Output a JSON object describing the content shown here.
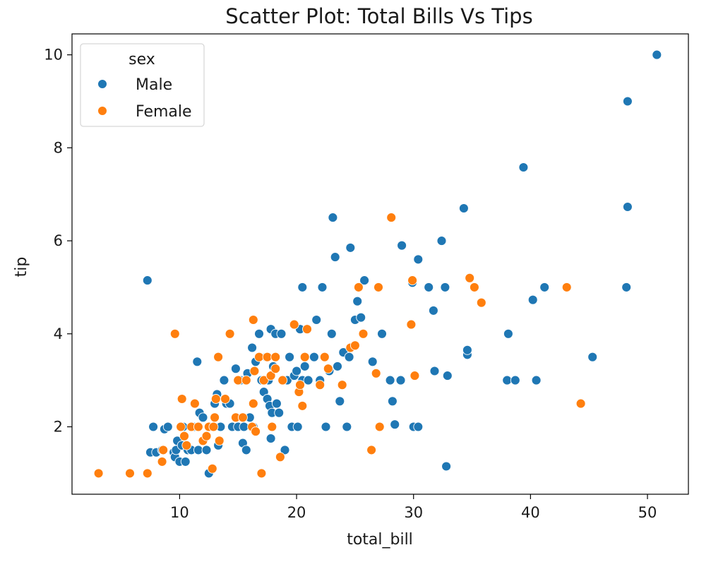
{
  "chart_data": {
    "type": "scatter",
    "title": "Scatter Plot: Total Bills Vs Tips",
    "xlabel": "total_bill",
    "ylabel": "tip",
    "xlim": [
      0.8,
      53.5
    ],
    "ylim": [
      0.55,
      10.45
    ],
    "xticks": [
      10,
      20,
      30,
      40,
      50
    ],
    "yticks": [
      2,
      4,
      6,
      8,
      10
    ],
    "grid": false,
    "legend": {
      "title": "sex",
      "placement": "top-left"
    },
    "series": [
      {
        "name": "Male",
        "color": "#1f77b4",
        "points": [
          [
            7.25,
            5.15
          ],
          [
            7.5,
            1.45
          ],
          [
            7.75,
            2.0
          ],
          [
            8.0,
            1.45
          ],
          [
            8.5,
            1.5
          ],
          [
            8.7,
            1.95
          ],
          [
            9.0,
            2.0
          ],
          [
            9.5,
            1.45
          ],
          [
            9.6,
            1.35
          ],
          [
            9.7,
            1.5
          ],
          [
            9.8,
            1.7
          ],
          [
            10.0,
            1.25
          ],
          [
            10.2,
            1.6
          ],
          [
            10.3,
            2.0
          ],
          [
            10.5,
            1.25
          ],
          [
            10.7,
            1.5
          ],
          [
            11.0,
            1.5
          ],
          [
            11.2,
            2.0
          ],
          [
            11.5,
            3.4
          ],
          [
            11.6,
            1.5
          ],
          [
            11.7,
            2.3
          ],
          [
            12.0,
            2.2
          ],
          [
            12.3,
            1.5
          ],
          [
            12.5,
            2.0
          ],
          [
            12.5,
            1.0
          ],
          [
            12.7,
            2.0
          ],
          [
            13.0,
            2.5
          ],
          [
            13.2,
            2.7
          ],
          [
            13.3,
            1.6
          ],
          [
            13.5,
            2.0
          ],
          [
            13.8,
            3.0
          ],
          [
            14.0,
            2.5
          ],
          [
            14.3,
            2.5
          ],
          [
            14.5,
            2.0
          ],
          [
            14.8,
            3.25
          ],
          [
            15.0,
            2.0
          ],
          [
            15.2,
            3.0
          ],
          [
            15.4,
            1.65
          ],
          [
            15.5,
            2.0
          ],
          [
            15.7,
            1.5
          ],
          [
            15.8,
            3.15
          ],
          [
            16.0,
            2.2
          ],
          [
            16.2,
            3.7
          ],
          [
            16.3,
            2.0
          ],
          [
            16.5,
            3.4
          ],
          [
            16.8,
            4.0
          ],
          [
            17.0,
            3.0
          ],
          [
            17.2,
            2.75
          ],
          [
            17.4,
            3.5
          ],
          [
            17.5,
            2.6
          ],
          [
            17.6,
            3.0
          ],
          [
            17.7,
            2.45
          ],
          [
            17.8,
            1.75
          ],
          [
            17.8,
            4.1
          ],
          [
            17.9,
            2.3
          ],
          [
            18.0,
            3.3
          ],
          [
            18.2,
            4.0
          ],
          [
            18.3,
            2.5
          ],
          [
            18.5,
            2.3
          ],
          [
            18.7,
            4.0
          ],
          [
            19.0,
            1.5
          ],
          [
            19.2,
            3.0
          ],
          [
            19.4,
            3.5
          ],
          [
            19.6,
            2.0
          ],
          [
            19.8,
            3.1
          ],
          [
            20.0,
            3.2
          ],
          [
            20.1,
            2.0
          ],
          [
            20.3,
            4.1
          ],
          [
            20.5,
            3.0
          ],
          [
            20.5,
            5.0
          ],
          [
            20.7,
            3.3
          ],
          [
            21.0,
            3.0
          ],
          [
            21.5,
            3.5
          ],
          [
            21.7,
            4.3
          ],
          [
            22.0,
            3.0
          ],
          [
            22.2,
            5.0
          ],
          [
            22.5,
            2.0
          ],
          [
            22.8,
            3.2
          ],
          [
            23.0,
            4.0
          ],
          [
            23.1,
            6.5
          ],
          [
            23.3,
            5.65
          ],
          [
            23.5,
            3.3
          ],
          [
            23.7,
            2.55
          ],
          [
            24.0,
            3.6
          ],
          [
            24.3,
            2.0
          ],
          [
            24.5,
            3.5
          ],
          [
            24.6,
            5.85
          ],
          [
            25.0,
            4.3
          ],
          [
            25.2,
            4.7
          ],
          [
            25.5,
            4.35
          ],
          [
            25.8,
            5.15
          ],
          [
            26.5,
            3.4
          ],
          [
            27.3,
            4.0
          ],
          [
            28.0,
            3.0
          ],
          [
            28.2,
            2.55
          ],
          [
            28.4,
            2.05
          ],
          [
            28.9,
            3.0
          ],
          [
            29.0,
            5.9
          ],
          [
            29.9,
            5.1
          ],
          [
            30.0,
            2.0
          ],
          [
            30.4,
            2.0
          ],
          [
            30.4,
            5.6
          ],
          [
            31.3,
            5.0
          ],
          [
            31.7,
            4.5
          ],
          [
            31.8,
            3.2
          ],
          [
            32.4,
            6.0
          ],
          [
            32.7,
            5.0
          ],
          [
            32.8,
            1.15
          ],
          [
            32.9,
            3.1
          ],
          [
            34.3,
            6.7
          ],
          [
            34.6,
            3.55
          ],
          [
            34.6,
            3.65
          ],
          [
            38.0,
            3.0
          ],
          [
            38.1,
            4.0
          ],
          [
            38.7,
            3.0
          ],
          [
            39.4,
            7.58
          ],
          [
            40.2,
            4.73
          ],
          [
            40.5,
            3.0
          ],
          [
            41.2,
            5.0
          ],
          [
            45.3,
            3.5
          ],
          [
            48.2,
            5.0
          ],
          [
            48.3,
            6.73
          ],
          [
            48.3,
            9.0
          ],
          [
            50.8,
            10.0
          ]
        ]
      },
      {
        "name": "Female",
        "color": "#ff7f0e",
        "points": [
          [
            3.07,
            1.0
          ],
          [
            5.75,
            1.0
          ],
          [
            7.25,
            1.0
          ],
          [
            8.5,
            1.25
          ],
          [
            8.6,
            1.5
          ],
          [
            9.6,
            4.0
          ],
          [
            10.1,
            2.0
          ],
          [
            10.2,
            2.6
          ],
          [
            10.4,
            1.8
          ],
          [
            10.6,
            1.6
          ],
          [
            11.0,
            2.0
          ],
          [
            11.3,
            2.5
          ],
          [
            11.6,
            2.0
          ],
          [
            12.0,
            1.7
          ],
          [
            12.3,
            1.8
          ],
          [
            12.5,
            2.0
          ],
          [
            12.8,
            1.1
          ],
          [
            12.9,
            2.0
          ],
          [
            13.0,
            2.2
          ],
          [
            13.1,
            2.6
          ],
          [
            13.3,
            3.5
          ],
          [
            13.4,
            1.7
          ],
          [
            13.9,
            2.6
          ],
          [
            14.3,
            4.0
          ],
          [
            14.8,
            2.2
          ],
          [
            15.0,
            3.0
          ],
          [
            15.4,
            2.2
          ],
          [
            15.7,
            3.0
          ],
          [
            16.2,
            2.0
          ],
          [
            16.3,
            2.5
          ],
          [
            16.3,
            4.3
          ],
          [
            16.4,
            3.2
          ],
          [
            16.5,
            1.9
          ],
          [
            16.8,
            3.5
          ],
          [
            17.0,
            1.0
          ],
          [
            17.2,
            3.0
          ],
          [
            17.5,
            3.5
          ],
          [
            17.8,
            3.1
          ],
          [
            17.9,
            2.0
          ],
          [
            18.2,
            3.25
          ],
          [
            18.2,
            3.5
          ],
          [
            18.6,
            1.35
          ],
          [
            18.8,
            3.0
          ],
          [
            19.8,
            4.2
          ],
          [
            20.2,
            2.75
          ],
          [
            20.3,
            2.9
          ],
          [
            20.5,
            2.45
          ],
          [
            20.7,
            3.5
          ],
          [
            20.9,
            4.1
          ],
          [
            22.0,
            2.9
          ],
          [
            22.4,
            3.5
          ],
          [
            22.7,
            3.25
          ],
          [
            23.9,
            2.9
          ],
          [
            24.6,
            3.7
          ],
          [
            25.0,
            3.75
          ],
          [
            25.3,
            5.0
          ],
          [
            25.7,
            4.0
          ],
          [
            26.4,
            1.5
          ],
          [
            26.8,
            3.15
          ],
          [
            27.0,
            5.0
          ],
          [
            27.1,
            2.0
          ],
          [
            28.1,
            6.5
          ],
          [
            29.8,
            4.2
          ],
          [
            29.9,
            5.15
          ],
          [
            30.1,
            3.1
          ],
          [
            34.8,
            5.2
          ],
          [
            35.2,
            5.0
          ],
          [
            35.8,
            4.67
          ],
          [
            43.1,
            5.0
          ],
          [
            44.3,
            2.5
          ]
        ]
      }
    ]
  }
}
